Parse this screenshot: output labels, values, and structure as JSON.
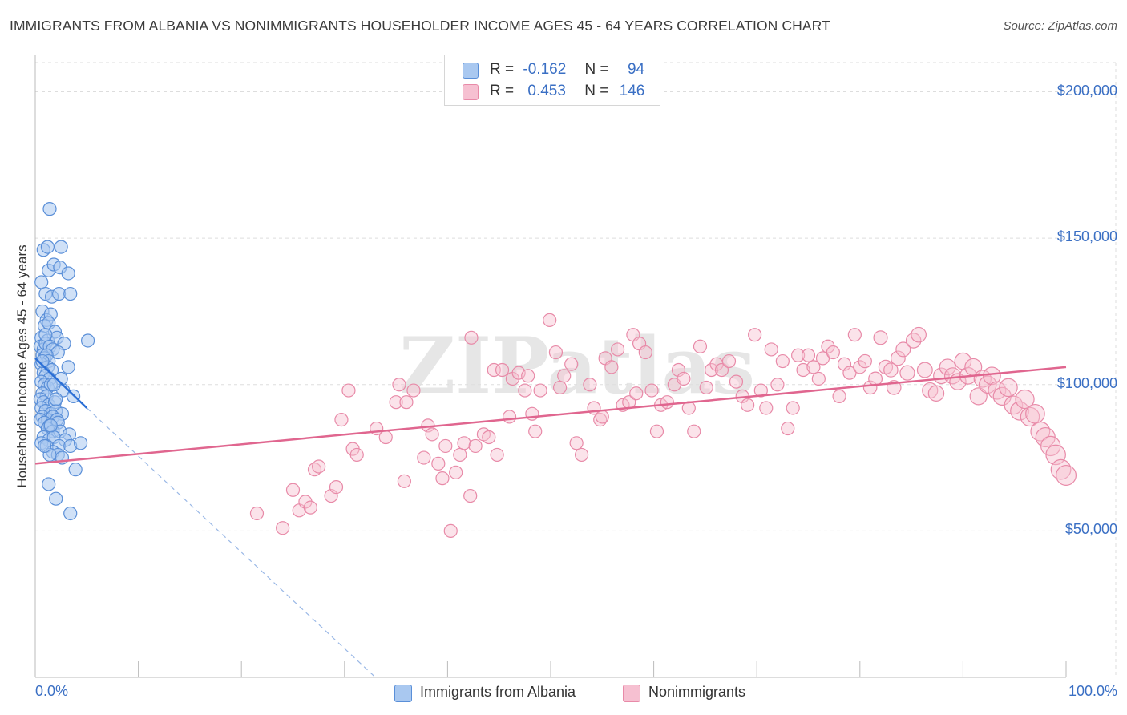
{
  "title": "IMMIGRANTS FROM ALBANIA VS NONIMMIGRANTS HOUSEHOLDER INCOME AGES 45 - 64 YEARS CORRELATION CHART",
  "source": "Source: ZipAtlas.com",
  "colors": {
    "blue_fill": "#a9c8f0",
    "blue_stroke": "#5a8fd8",
    "blue_line": "#2b6fd6",
    "pink_fill": "#f6c0d1",
    "pink_stroke": "#e88aa8",
    "pink_line": "#e0668f",
    "axis_text": "#3a6fc4",
    "grid": "#dddddd"
  },
  "legend": {
    "rows": [
      {
        "r_label": "R =",
        "r_value": "-0.162",
        "n_label": "N =",
        "n_value": "94"
      },
      {
        "r_label": "R =",
        "r_value": "0.453",
        "n_label": "N =",
        "n_value": "146"
      }
    ]
  },
  "watermark": "ZIPatlas",
  "chart_data": {
    "type": "scatter",
    "xlabel": "",
    "ylabel": "Householder Income Ages 45 - 64 years",
    "xlim": [
      0,
      100
    ],
    "ylim": [
      0,
      210000
    ],
    "x_tick_labels": {
      "left": "0.0%",
      "right": "100.0%"
    },
    "y_ticks": [
      {
        "value": 50000,
        "label": "$50,000"
      },
      {
        "value": 100000,
        "label": "$100,000"
      },
      {
        "value": 150000,
        "label": "$150,000"
      },
      {
        "value": 200000,
        "label": "$200,000"
      }
    ],
    "series": [
      {
        "name": "Immigrants from Albania",
        "r": -0.162,
        "n": 94,
        "trend": {
          "x0": 0,
          "y0": 109000,
          "x1": 5,
          "y1": 92000,
          "dashed_to_x": 33,
          "dashed_to_y": 0
        },
        "points": [
          [
            1.4,
            160000
          ],
          [
            0.8,
            146000
          ],
          [
            1.2,
            147000
          ],
          [
            2.5,
            147000
          ],
          [
            1.3,
            139000
          ],
          [
            1.8,
            141000
          ],
          [
            2.4,
            140000
          ],
          [
            3.2,
            138000
          ],
          [
            0.6,
            135000
          ],
          [
            1.0,
            131000
          ],
          [
            1.6,
            130000
          ],
          [
            2.3,
            131000
          ],
          [
            3.4,
            131000
          ],
          [
            0.7,
            125000
          ],
          [
            1.1,
            122000
          ],
          [
            1.5,
            124000
          ],
          [
            0.9,
            120000
          ],
          [
            1.3,
            121000
          ],
          [
            1.9,
            118000
          ],
          [
            0.6,
            116000
          ],
          [
            1.2,
            115000
          ],
          [
            2.1,
            116000
          ],
          [
            2.8,
            114000
          ],
          [
            5.1,
            115000
          ],
          [
            0.5,
            113000
          ],
          [
            0.8,
            112000
          ],
          [
            1.0,
            114000
          ],
          [
            1.4,
            113000
          ],
          [
            1.7,
            112000
          ],
          [
            2.2,
            111000
          ],
          [
            0.7,
            110000
          ],
          [
            0.9,
            109000
          ],
          [
            1.1,
            110000
          ],
          [
            1.3,
            108000
          ],
          [
            0.6,
            107000
          ],
          [
            1.2,
            106000
          ],
          [
            1.6,
            105000
          ],
          [
            3.2,
            106000
          ],
          [
            0.8,
            104000
          ],
          [
            1.0,
            103000
          ],
          [
            1.4,
            102000
          ],
          [
            2.5,
            102000
          ],
          [
            0.6,
            101000
          ],
          [
            0.9,
            100000
          ],
          [
            1.2,
            99000
          ],
          [
            1.5,
            100000
          ],
          [
            2.7,
            98000
          ],
          [
            0.7,
            97000
          ],
          [
            1.1,
            96000
          ],
          [
            3.7,
            96000
          ],
          [
            0.5,
            95000
          ],
          [
            0.8,
            94000
          ],
          [
            1.3,
            93000
          ],
          [
            1.9,
            94000
          ],
          [
            0.6,
            92000
          ],
          [
            1.0,
            91000
          ],
          [
            1.5,
            90000
          ],
          [
            2.0,
            91000
          ],
          [
            2.6,
            90000
          ],
          [
            0.7,
            89000
          ],
          [
            1.2,
            88000
          ],
          [
            1.7,
            89000
          ],
          [
            2.1,
            88000
          ],
          [
            0.5,
            88000
          ],
          [
            0.9,
            87000
          ],
          [
            1.4,
            86000
          ],
          [
            2.2,
            87000
          ],
          [
            1.2,
            85000
          ],
          [
            1.7,
            84000
          ],
          [
            2.4,
            84000
          ],
          [
            3.3,
            83000
          ],
          [
            0.8,
            82000
          ],
          [
            1.3,
            81000
          ],
          [
            1.8,
            82000
          ],
          [
            2.9,
            81000
          ],
          [
            0.6,
            80000
          ],
          [
            1.1,
            79000
          ],
          [
            2.3,
            79000
          ],
          [
            3.4,
            79000
          ],
          [
            4.4,
            80000
          ],
          [
            1.7,
            77000
          ],
          [
            2.2,
            76000
          ],
          [
            2.6,
            75000
          ],
          [
            1.4,
            76000
          ],
          [
            3.9,
            71000
          ],
          [
            1.3,
            66000
          ],
          [
            2.0,
            61000
          ],
          [
            3.4,
            56000
          ],
          [
            0.9,
            79000
          ],
          [
            1.8,
            100000
          ],
          [
            1.0,
            117000
          ],
          [
            0.7,
            108000
          ],
          [
            2.0,
            95000
          ],
          [
            1.5,
            86000
          ]
        ]
      },
      {
        "name": "Nonimmigrants",
        "r": 0.453,
        "n": 146,
        "trend": {
          "x0": 0,
          "y0": 73000,
          "x1": 100,
          "y1": 106000
        },
        "points": [
          [
            21.5,
            56000
          ],
          [
            24.0,
            51000
          ],
          [
            25.0,
            64000
          ],
          [
            25.6,
            57000
          ],
          [
            26.2,
            60000
          ],
          [
            26.7,
            58000
          ],
          [
            27.1,
            71000
          ],
          [
            27.5,
            72000
          ],
          [
            28.7,
            62000
          ],
          [
            29.2,
            65000
          ],
          [
            29.7,
            88000
          ],
          [
            30.4,
            98000
          ],
          [
            30.8,
            78000
          ],
          [
            31.2,
            76000
          ],
          [
            33.1,
            85000
          ],
          [
            34.0,
            82000
          ],
          [
            35.0,
            94000
          ],
          [
            35.3,
            100000
          ],
          [
            35.8,
            67000
          ],
          [
            36.0,
            94000
          ],
          [
            36.7,
            98000
          ],
          [
            37.7,
            75000
          ],
          [
            38.1,
            86000
          ],
          [
            38.5,
            83000
          ],
          [
            39.1,
            73000
          ],
          [
            39.5,
            68000
          ],
          [
            39.8,
            79000
          ],
          [
            40.3,
            50000
          ],
          [
            40.8,
            70000
          ],
          [
            41.2,
            76000
          ],
          [
            41.6,
            80000
          ],
          [
            42.2,
            62000
          ],
          [
            42.3,
            116000
          ],
          [
            42.7,
            79000
          ],
          [
            43.5,
            83000
          ],
          [
            44.0,
            82000
          ],
          [
            44.5,
            105000
          ],
          [
            45.3,
            105000
          ],
          [
            46.0,
            89000
          ],
          [
            46.3,
            102000
          ],
          [
            46.9,
            104000
          ],
          [
            47.5,
            98000
          ],
          [
            47.8,
            103000
          ],
          [
            48.2,
            90000
          ],
          [
            48.5,
            84000
          ],
          [
            49.0,
            98000
          ],
          [
            49.9,
            122000
          ],
          [
            50.5,
            111000
          ],
          [
            50.9,
            99000
          ],
          [
            51.3,
            103000
          ],
          [
            52.0,
            107000
          ],
          [
            52.5,
            80000
          ],
          [
            53.0,
            76000
          ],
          [
            53.8,
            100000
          ],
          [
            54.2,
            92000
          ],
          [
            54.8,
            88000
          ],
          [
            55.3,
            109000
          ],
          [
            55.9,
            106000
          ],
          [
            56.5,
            112000
          ],
          [
            57.0,
            93000
          ],
          [
            57.6,
            94000
          ],
          [
            58.0,
            117000
          ],
          [
            58.6,
            114000
          ],
          [
            59.2,
            111000
          ],
          [
            59.8,
            98000
          ],
          [
            60.3,
            84000
          ],
          [
            60.7,
            93000
          ],
          [
            61.3,
            94000
          ],
          [
            62.0,
            100000
          ],
          [
            62.4,
            105000
          ],
          [
            62.9,
            102000
          ],
          [
            63.4,
            92000
          ],
          [
            63.9,
            84000
          ],
          [
            64.5,
            113000
          ],
          [
            65.1,
            99000
          ],
          [
            65.6,
            105000
          ],
          [
            66.1,
            107000
          ],
          [
            66.6,
            105000
          ],
          [
            67.3,
            108000
          ],
          [
            68.0,
            101000
          ],
          [
            68.6,
            96000
          ],
          [
            69.1,
            93000
          ],
          [
            69.8,
            117000
          ],
          [
            70.4,
            98000
          ],
          [
            70.9,
            92000
          ],
          [
            71.4,
            112000
          ],
          [
            72.0,
            100000
          ],
          [
            72.5,
            108000
          ],
          [
            73.0,
            85000
          ],
          [
            73.5,
            92000
          ],
          [
            74.0,
            110000
          ],
          [
            74.5,
            105000
          ],
          [
            75.0,
            110000
          ],
          [
            75.5,
            106000
          ],
          [
            76.0,
            102000
          ],
          [
            76.4,
            109000
          ],
          [
            76.9,
            113000
          ],
          [
            77.4,
            111000
          ],
          [
            78.0,
            96000
          ],
          [
            78.5,
            107000
          ],
          [
            79.0,
            104000
          ],
          [
            79.5,
            117000
          ],
          [
            80.0,
            106000
          ],
          [
            80.5,
            108000
          ],
          [
            81.0,
            99000
          ],
          [
            81.5,
            102000
          ],
          [
            82.0,
            116000
          ],
          [
            82.5,
            106000
          ],
          [
            83.0,
            105000
          ],
          [
            83.3,
            99000
          ],
          [
            83.7,
            109000
          ],
          [
            84.2,
            112000
          ],
          [
            84.6,
            104000
          ],
          [
            85.2,
            115000
          ],
          [
            85.7,
            117000
          ],
          [
            86.3,
            105000
          ],
          [
            86.8,
            98000
          ],
          [
            87.4,
            97000
          ],
          [
            87.9,
            103000
          ],
          [
            88.5,
            106000
          ],
          [
            89.0,
            103000
          ],
          [
            89.5,
            101000
          ],
          [
            90.0,
            108000
          ],
          [
            90.5,
            103000
          ],
          [
            91.0,
            106000
          ],
          [
            91.5,
            96000
          ],
          [
            91.9,
            102000
          ],
          [
            92.4,
            100000
          ],
          [
            92.8,
            103000
          ],
          [
            93.3,
            98000
          ],
          [
            93.8,
            96000
          ],
          [
            94.4,
            99000
          ],
          [
            94.9,
            93000
          ],
          [
            95.5,
            91000
          ],
          [
            96.0,
            95000
          ],
          [
            96.5,
            89000
          ],
          [
            97.0,
            90000
          ],
          [
            97.5,
            84000
          ],
          [
            98.0,
            82000
          ],
          [
            98.5,
            79000
          ],
          [
            99.0,
            76000
          ],
          [
            99.5,
            71000
          ],
          [
            100.0,
            69000
          ],
          [
            55.0,
            89000
          ],
          [
            44.8,
            76000
          ],
          [
            58.3,
            97000
          ]
        ]
      }
    ]
  },
  "bottom_legend": {
    "items": [
      "Immigrants from Albania",
      "Nonimmigrants"
    ]
  }
}
